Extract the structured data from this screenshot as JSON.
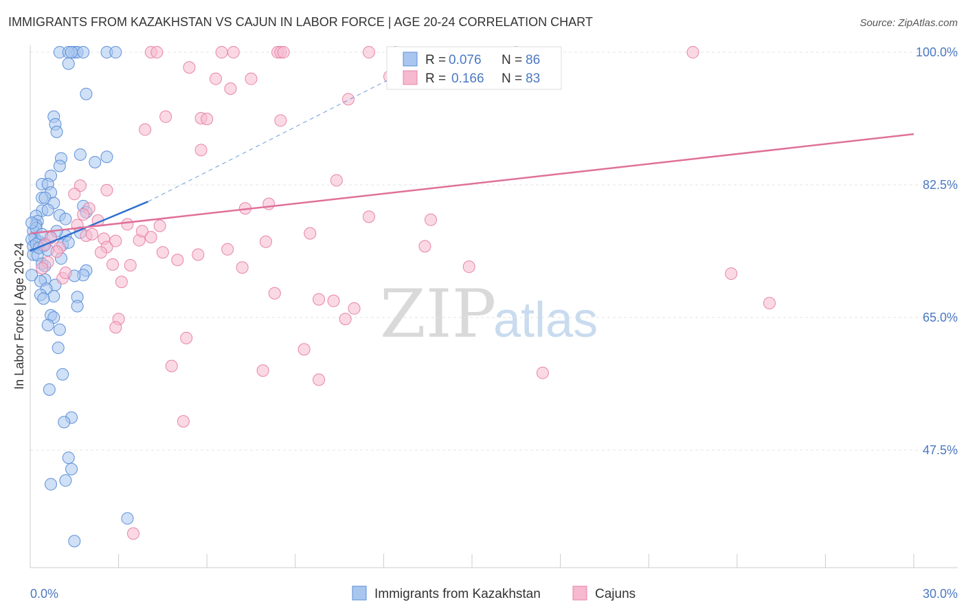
{
  "chart_data": {
    "type": "scatter",
    "title": "IMMIGRANTS FROM KAZAKHSTAN VS CAJUN IN LABOR FORCE | AGE 20-24 CORRELATION CHART",
    "source": "Source: ZipAtlas.com",
    "xlabel": "",
    "ylabel": "In Labor Force | Age 20-24",
    "xlim": [
      0,
      30
    ],
    "ylim": [
      32,
      102
    ],
    "x_tick_labels": [
      "0.0%",
      "30.0%"
    ],
    "y_ticks": [
      47.5,
      65.0,
      82.5,
      100.0
    ],
    "y_tick_labels": [
      "47.5%",
      "65.0%",
      "82.5%",
      "100.0%"
    ],
    "grid": true,
    "legend_placement": "bottom-center",
    "stats_box": [
      {
        "r_label": "R =",
        "r_value": "0.076",
        "n_label": "N =",
        "n_value": "86"
      },
      {
        "r_label": "R =",
        "r_value": "0.166",
        "n_label": "N =",
        "n_value": "83"
      }
    ],
    "watermark": {
      "zip": "ZIP",
      "atlas": "atlas"
    },
    "series": [
      {
        "name": "Immigrants from Kazakhstan",
        "color": "#5b8fd9",
        "fill": "#a9c6ee",
        "trend": {
          "x": [
            0.0,
            4.0
          ],
          "y": [
            73.8,
            80.3
          ],
          "color": "#2f6fd0"
        },
        "trend_extension": {
          "x": [
            4.0,
            14.0
          ],
          "y": [
            80.3,
            100.0
          ],
          "dashed": true
        },
        "points": [
          [
            1.0,
            100
          ],
          [
            1.5,
            100
          ],
          [
            1.6,
            100
          ],
          [
            1.8,
            100
          ],
          [
            2.6,
            100
          ],
          [
            2.9,
            100
          ],
          [
            1.3,
            100
          ],
          [
            1.4,
            100
          ],
          [
            1.3,
            98.5
          ],
          [
            1.9,
            94.5
          ],
          [
            0.8,
            91.5
          ],
          [
            0.85,
            90.5
          ],
          [
            0.9,
            89.5
          ],
          [
            1.7,
            86.5
          ],
          [
            2.6,
            86.2
          ],
          [
            1.05,
            86
          ],
          [
            2.2,
            85.5
          ],
          [
            1.0,
            85
          ],
          [
            0.7,
            83.7
          ],
          [
            0.4,
            82.6
          ],
          [
            0.6,
            82.6
          ],
          [
            0.7,
            81.5
          ],
          [
            0.4,
            80.8
          ],
          [
            0.5,
            80.8
          ],
          [
            0.8,
            80.1
          ],
          [
            1.8,
            79.7
          ],
          [
            0.4,
            79.1
          ],
          [
            0.6,
            79.2
          ],
          [
            0.2,
            78.4
          ],
          [
            0.25,
            77.7
          ],
          [
            1.0,
            78.5
          ],
          [
            1.2,
            78.0
          ],
          [
            1.9,
            78.9
          ],
          [
            0.2,
            77.2
          ],
          [
            0.1,
            76.4
          ],
          [
            0.15,
            75.5
          ],
          [
            0.05,
            75.3
          ],
          [
            0.3,
            75.0
          ],
          [
            0.5,
            74.8
          ],
          [
            1.2,
            75.8
          ],
          [
            0.1,
            74.4
          ],
          [
            0.2,
            74.7
          ],
          [
            0.45,
            74.4
          ],
          [
            0.7,
            75.6
          ],
          [
            1.7,
            76.2
          ],
          [
            1.1,
            74.6
          ],
          [
            0.1,
            73.3
          ],
          [
            0.25,
            73.2
          ],
          [
            1.05,
            72.8
          ],
          [
            0.4,
            72.1
          ],
          [
            0.5,
            71.8
          ],
          [
            1.9,
            71.2
          ],
          [
            1.8,
            70.6
          ],
          [
            1.5,
            70.5
          ],
          [
            0.05,
            70.6
          ],
          [
            0.5,
            70.0
          ],
          [
            0.35,
            69.8
          ],
          [
            0.85,
            69.3
          ],
          [
            0.55,
            68.8
          ],
          [
            0.35,
            68.0
          ],
          [
            0.8,
            67.8
          ],
          [
            0.45,
            67.5
          ],
          [
            1.6,
            67.7
          ],
          [
            1.6,
            66.5
          ],
          [
            0.7,
            65.3
          ],
          [
            0.8,
            65.0
          ],
          [
            0.6,
            64.0
          ],
          [
            1.0,
            63.4
          ],
          [
            0.95,
            61.0
          ],
          [
            1.1,
            57.5
          ],
          [
            0.65,
            55.5
          ],
          [
            1.4,
            51.8
          ],
          [
            1.15,
            51.2
          ],
          [
            1.3,
            46.5
          ],
          [
            1.4,
            45.0
          ],
          [
            1.2,
            43.5
          ],
          [
            0.7,
            43.0
          ],
          [
            3.3,
            38.5
          ],
          [
            1.5,
            35.5
          ],
          [
            0.2,
            76.8
          ],
          [
            0.3,
            74.2
          ],
          [
            0.4,
            76.0
          ],
          [
            0.6,
            73.9
          ],
          [
            1.3,
            74.9
          ],
          [
            0.05,
            77.5
          ],
          [
            0.9,
            76.4
          ]
        ]
      },
      {
        "name": "Cajuns",
        "color": "#e883a6",
        "fill": "#f6b9cf",
        "trend": {
          "x": [
            0.0,
            30.0
          ],
          "y": [
            76.1,
            89.2
          ],
          "color": "#e07099"
        },
        "points": [
          [
            4.1,
            100
          ],
          [
            4.3,
            100
          ],
          [
            6.5,
            100
          ],
          [
            6.9,
            100
          ],
          [
            8.4,
            100
          ],
          [
            8.5,
            100
          ],
          [
            8.6,
            100
          ],
          [
            11.5,
            100
          ],
          [
            12.4,
            100
          ],
          [
            16.5,
            100
          ],
          [
            22.5,
            100
          ],
          [
            5.4,
            98
          ],
          [
            6.3,
            96.5
          ],
          [
            7.5,
            96.5
          ],
          [
            6.8,
            95.2
          ],
          [
            12.2,
            96.8
          ],
          [
            10.8,
            93.8
          ],
          [
            4.6,
            91.5
          ],
          [
            5.8,
            91.3
          ],
          [
            6.0,
            91.2
          ],
          [
            8.5,
            91.0
          ],
          [
            3.9,
            89.8
          ],
          [
            5.8,
            87.1
          ],
          [
            10.4,
            83.1
          ],
          [
            1.7,
            82.4
          ],
          [
            2.6,
            81.8
          ],
          [
            1.5,
            81.3
          ],
          [
            8.1,
            80.0
          ],
          [
            7.3,
            79.4
          ],
          [
            2.0,
            79.4
          ],
          [
            1.8,
            78.6
          ],
          [
            11.5,
            78.3
          ],
          [
            2.3,
            77.8
          ],
          [
            3.3,
            77.3
          ],
          [
            4.4,
            77.1
          ],
          [
            9.5,
            76.1
          ],
          [
            4.1,
            75.6
          ],
          [
            2.5,
            75.4
          ],
          [
            1.9,
            75.8
          ],
          [
            8.0,
            75.0
          ],
          [
            3.7,
            75.2
          ],
          [
            2.6,
            74.3
          ],
          [
            13.4,
            74.4
          ],
          [
            4.5,
            73.6
          ],
          [
            5.7,
            73.3
          ],
          [
            1.0,
            74.2
          ],
          [
            2.4,
            73.6
          ],
          [
            5.0,
            72.6
          ],
          [
            3.4,
            71.9
          ],
          [
            2.8,
            72.0
          ],
          [
            7.2,
            71.6
          ],
          [
            14.9,
            71.7
          ],
          [
            23.8,
            70.8
          ],
          [
            1.1,
            70.2
          ],
          [
            3.1,
            69.7
          ],
          [
            8.3,
            68.2
          ],
          [
            9.8,
            67.4
          ],
          [
            10.3,
            67.2
          ],
          [
            11.0,
            66.2
          ],
          [
            10.7,
            64.8
          ],
          [
            25.1,
            66.9
          ],
          [
            3.0,
            64.8
          ],
          [
            2.9,
            63.7
          ],
          [
            5.3,
            62.3
          ],
          [
            9.3,
            60.8
          ],
          [
            4.8,
            58.6
          ],
          [
            7.9,
            58.0
          ],
          [
            17.4,
            57.7
          ],
          [
            9.8,
            56.8
          ],
          [
            5.2,
            51.3
          ],
          [
            3.5,
            36.5
          ],
          [
            0.7,
            75.5
          ],
          [
            0.5,
            74.6
          ],
          [
            0.6,
            72.3
          ],
          [
            0.4,
            71.5
          ],
          [
            1.6,
            77.2
          ],
          [
            2.1,
            76.0
          ],
          [
            0.9,
            73.7
          ],
          [
            1.2,
            70.9
          ],
          [
            3.8,
            76.4
          ],
          [
            2.9,
            75.1
          ],
          [
            6.7,
            74.0
          ],
          [
            13.6,
            77.9
          ]
        ]
      }
    ]
  }
}
